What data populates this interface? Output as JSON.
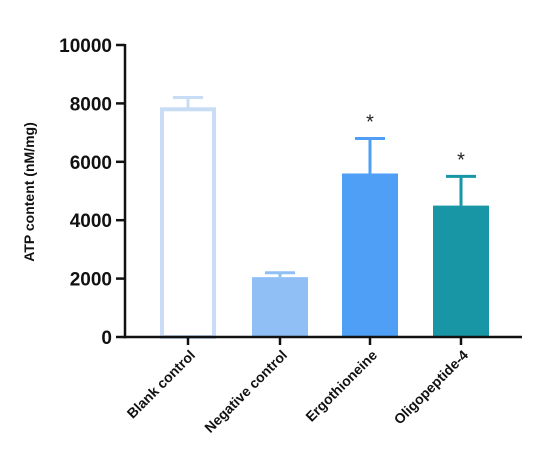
{
  "chart_data": {
    "type": "bar",
    "title": "",
    "xlabel": "",
    "ylabel": "ATP content (nM/mg)",
    "ylim": [
      0,
      10000
    ],
    "yticks": [
      0,
      2000,
      4000,
      6000,
      8000,
      10000
    ],
    "yticks_labels": [
      "0",
      "2000",
      "4000",
      "6000",
      "8000",
      "10000"
    ],
    "grid": false,
    "categories": [
      "Blank control",
      "Negative control",
      "Ergothioneine",
      "Oligopeptide-4"
    ],
    "values": [
      7850,
      2050,
      5600,
      4500
    ],
    "errors": [
      350,
      150,
      1200,
      1000
    ],
    "significance": [
      "",
      "",
      "*",
      "*"
    ],
    "bar_styles": [
      {
        "fill": "#ffffff",
        "stroke": "#c9dcf5"
      },
      {
        "fill": "#90bff5",
        "stroke": "#90bff5"
      },
      {
        "fill": "#4f9ff7",
        "stroke": "#4f9ff7"
      },
      {
        "fill": "#1896a6",
        "stroke": "#1896a6"
      }
    ],
    "error_colors": [
      "#c9dcf5",
      "#90bff5",
      "#4f9ff7",
      "#1896a6"
    ]
  }
}
